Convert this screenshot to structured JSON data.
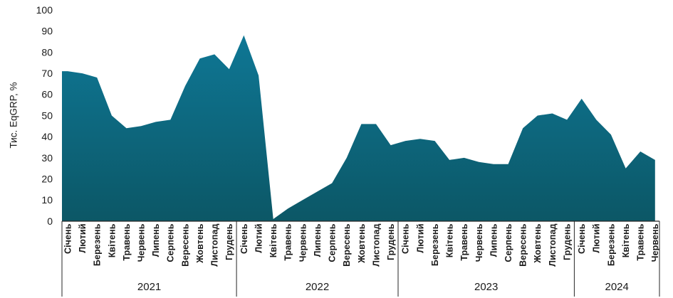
{
  "chart_data": {
    "type": "area",
    "title": "",
    "xlabel": "",
    "ylabel": "Тис. EqGRP, %",
    "ylim": [
      0,
      100
    ],
    "ytick_step": 10,
    "grid": "off",
    "legend": "none",
    "note": "single teal area series; x axis grouped by year with rotated month labels; March 2022 missing from axis",
    "groups": [
      {
        "year": "2021",
        "months": [
          "Січень",
          "Лютий",
          "Березень",
          "Квітень",
          "Травень",
          "Червень",
          "Липень",
          "Серпень",
          "Вересень",
          "Жовтень",
          "Листопад",
          "Грудень"
        ],
        "values": [
          71,
          70,
          68,
          50,
          44,
          45,
          47,
          48,
          64,
          77,
          79,
          72
        ]
      },
      {
        "year": "2022",
        "months": [
          "Січень",
          "Лютий",
          "Квітень",
          "Травень",
          "Червень",
          "Липень",
          "Серпень",
          "Вересень",
          "Жовтень",
          "Листопад",
          "Грудень"
        ],
        "values": [
          88,
          69,
          1,
          6,
          10,
          14,
          18,
          30,
          46,
          46,
          36
        ]
      },
      {
        "year": "2023",
        "months": [
          "Січень",
          "Лютий",
          "Березень",
          "Квітень",
          "Травень",
          "Червень",
          "Липень",
          "Серпень",
          "Вересень",
          "Жовтень",
          "Листопад",
          "Грудень"
        ],
        "values": [
          38,
          39,
          38,
          29,
          30,
          28,
          27,
          27,
          44,
          50,
          51,
          48
        ]
      },
      {
        "year": "2024",
        "months": [
          "Січень",
          "Лютий",
          "Березень",
          "Квітень",
          "Травень",
          "Червень"
        ],
        "values": [
          58,
          48,
          41,
          25,
          33,
          29
        ]
      }
    ],
    "colors": {
      "area_top": "#0e7795",
      "area_bottom": "#0c5766",
      "axis_line": "#262626",
      "text": "#1a1a1a"
    }
  }
}
